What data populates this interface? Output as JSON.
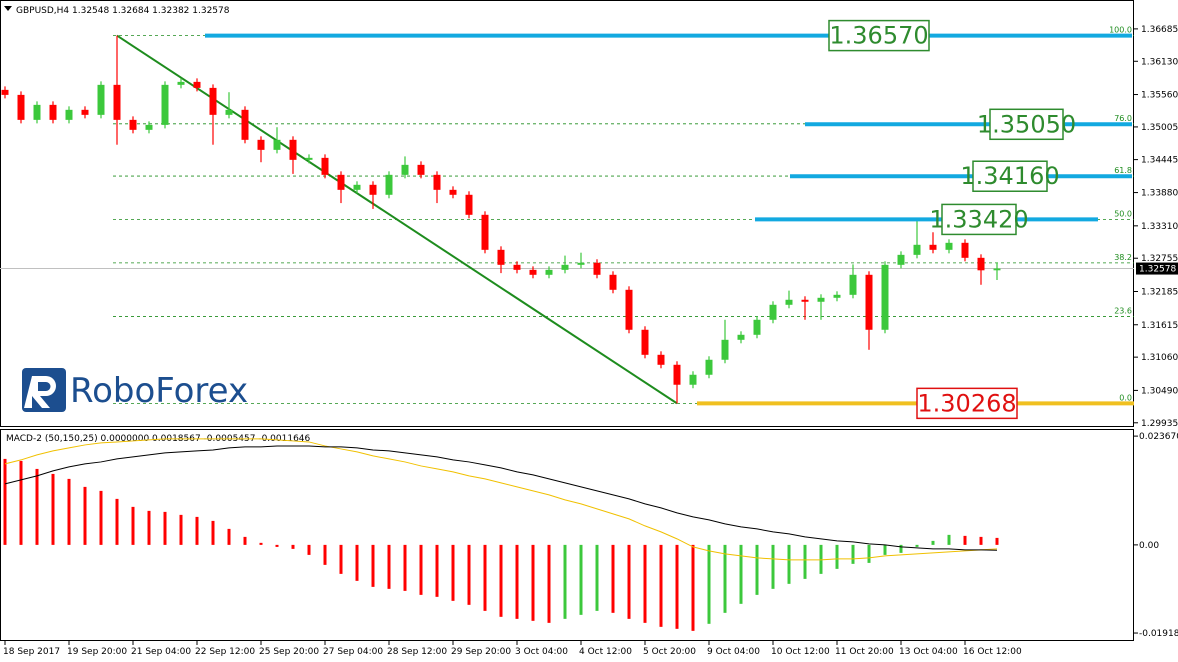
{
  "chart_data": [
    {
      "type": "candlestick",
      "title": "GBPUSD,H4  1.32548 1.32684 1.32382 1.32578",
      "logo": "RoboForex",
      "categories": [
        "18 Sep 2017",
        null,
        null,
        null,
        "19 Sep 20:00",
        null,
        null,
        null,
        "21 Sep 04:00",
        null,
        null,
        null,
        "22 Sep 12:00",
        null,
        null,
        null,
        "25 Sep 20:00",
        null,
        null,
        null,
        "27 Sep 04:00",
        null,
        null,
        null,
        "28 Sep 12:00",
        null,
        null,
        null,
        "29 Sep 20:00",
        null,
        null,
        null,
        "3 Oct 04:00",
        null,
        null,
        null,
        "4 Oct 12:00",
        null,
        null,
        null,
        "5 Oct 20:00",
        null,
        null,
        null,
        "9 Oct 04:00",
        null,
        null,
        null,
        "10 Oct 12:00",
        null,
        null,
        null,
        "11 Oct 20:00",
        null,
        null,
        null,
        "13 Oct 04:00",
        null,
        null,
        null,
        "16 Oct 12:00",
        null,
        null
      ],
      "open": [
        1.3564,
        1.35554,
        1.35126,
        1.35383,
        1.35126,
        1.35298,
        1.35212,
        1.35726,
        1.35126,
        1.34955,
        1.3504,
        1.35726,
        1.35777,
        1.35674,
        1.35212,
        1.35298,
        1.34784,
        1.34612,
        1.34784,
        1.34441,
        1.34475,
        1.34184,
        1.33927,
        1.34013,
        1.33842,
        1.34184,
        1.34355,
        1.34184,
        1.33927,
        1.33842,
        1.33499,
        1.32899,
        1.32642,
        1.32556,
        1.32471,
        1.32556,
        1.32642,
        1.32677,
        1.32471,
        1.32214,
        1.31529,
        1.311,
        1.30929,
        1.30587,
        1.30758,
        1.31015,
        1.31357,
        1.31443,
        1.317,
        1.31957,
        1.32043,
        1.32009,
        1.32077,
        1.32128,
        1.32471,
        1.31529,
        1.32642,
        1.32813,
        1.32985,
        1.32899,
        1.33019,
        1.32762,
        1.32548
      ],
      "high": [
        1.357,
        1.35614,
        1.35443,
        1.35443,
        1.35358,
        1.35358,
        1.35786,
        1.3657,
        1.35186,
        1.351,
        1.35786,
        1.35837,
        1.35837,
        1.35734,
        1.356,
        1.35358,
        1.34844,
        1.35,
        1.34844,
        1.34535,
        1.34535,
        1.34244,
        1.34073,
        1.34073,
        1.34244,
        1.345,
        1.34415,
        1.34244,
        1.33987,
        1.33902,
        1.33559,
        1.32959,
        1.32702,
        1.32616,
        1.32616,
        1.328,
        1.3285,
        1.32737,
        1.32531,
        1.32274,
        1.31589,
        1.3116,
        1.30989,
        1.30818,
        1.31075,
        1.317,
        1.31503,
        1.3176,
        1.32017,
        1.322,
        1.32103,
        1.32137,
        1.32188,
        1.3265,
        1.32531,
        1.32702,
        1.32873,
        1.33447,
        1.332,
        1.33079,
        1.33079,
        1.32822,
        1.32684
      ],
      "low": [
        1.35494,
        1.35066,
        1.35066,
        1.35066,
        1.35066,
        1.35152,
        1.35152,
        1.347,
        1.34895,
        1.34895,
        1.3498,
        1.35666,
        1.35614,
        1.347,
        1.35152,
        1.34724,
        1.344,
        1.34552,
        1.342,
        1.34381,
        1.34124,
        1.337,
        1.33867,
        1.336,
        1.33782,
        1.34124,
        1.34124,
        1.337,
        1.33782,
        1.33439,
        1.32839,
        1.325,
        1.32496,
        1.32411,
        1.32411,
        1.32496,
        1.32582,
        1.32411,
        1.32154,
        1.31469,
        1.3104,
        1.30869,
        1.30268,
        1.30527,
        1.30698,
        1.30955,
        1.31297,
        1.31383,
        1.3164,
        1.31897,
        1.317,
        1.317,
        1.32017,
        1.32068,
        1.31186,
        1.31469,
        1.32582,
        1.32753,
        1.32839,
        1.32839,
        1.32702,
        1.323,
        1.32382
      ],
      "close": [
        1.35554,
        1.35126,
        1.35383,
        1.35126,
        1.35298,
        1.35212,
        1.35726,
        1.35126,
        1.34955,
        1.3504,
        1.35726,
        1.35777,
        1.35674,
        1.35212,
        1.35298,
        1.34784,
        1.34612,
        1.34784,
        1.34441,
        1.34475,
        1.34184,
        1.33927,
        1.34013,
        1.33842,
        1.34184,
        1.34355,
        1.34184,
        1.33927,
        1.33842,
        1.33499,
        1.32899,
        1.32642,
        1.32556,
        1.32471,
        1.32556,
        1.32642,
        1.32677,
        1.32471,
        1.32214,
        1.31529,
        1.311,
        1.30929,
        1.30587,
        1.30758,
        1.31015,
        1.31357,
        1.31443,
        1.317,
        1.31957,
        1.32043,
        1.32009,
        1.32077,
        1.32128,
        1.32471,
        1.31529,
        1.32642,
        1.32813,
        1.32985,
        1.32899,
        1.33019,
        1.32762,
        1.32548,
        1.32578
      ],
      "up_color": "#3cc83c",
      "down_color": "#ff0000",
      "ylim": [
        1.2988,
        1.3718
      ],
      "yticks": [
        {
          "value": 1.36685,
          "label": "1.36685"
        },
        {
          "value": 1.3613,
          "label": "1.36130"
        },
        {
          "value": 1.3556,
          "label": "1.35560"
        },
        {
          "value": 1.35005,
          "label": "1.35005"
        },
        {
          "value": 1.34445,
          "label": "1.34445"
        },
        {
          "value": 1.3388,
          "label": "1.33880"
        },
        {
          "value": 1.3331,
          "label": "1.33310"
        },
        {
          "value": 1.32755,
          "label": "1.32755"
        },
        {
          "value": 1.32185,
          "label": "1.32185"
        },
        {
          "value": 1.31615,
          "label": "1.31615"
        },
        {
          "value": 1.3106,
          "label": "1.31060"
        },
        {
          "value": 1.3049,
          "label": "1.30490"
        },
        {
          "value": 1.29935,
          "label": "1.29935"
        }
      ],
      "current_price": {
        "value": 1.32578,
        "label": "1.32578"
      },
      "fib_levels": [
        {
          "label": "100.0",
          "price": 1.3657
        },
        {
          "label": "76.0",
          "price": 1.35058
        },
        {
          "label": "61.8",
          "price": 1.34163
        },
        {
          "label": "50.0",
          "price": 1.33419
        },
        {
          "label": "38.2",
          "price": 1.32675
        },
        {
          "label": "23.6",
          "price": 1.31755
        },
        {
          "label": "0.0",
          "price": 1.30268
        }
      ],
      "fib_color": "#1e8c1e",
      "trendline": {
        "start_index": 7,
        "start_price": 1.3657,
        "end_index": 42,
        "end_price": 1.30268,
        "color": "#1e8c1e"
      },
      "targets": [
        {
          "value": 1.3657,
          "label": "1.36570",
          "line_color": "#12a9e0",
          "box_color": "#2e8b2e"
        },
        {
          "value": 1.3505,
          "label": "1.35050",
          "line_color": "#12a9e0",
          "box_color": "#2e8b2e"
        },
        {
          "value": 1.3416,
          "label": "1.34160",
          "line_color": "#12a9e0",
          "box_color": "#2e8b2e"
        },
        {
          "value": 1.3342,
          "label": "1.33420",
          "line_color": "#12a9e0",
          "box_color": "#2e8b2e"
        },
        {
          "value": 1.30268,
          "label": "1.30268",
          "line_color": "#f0c020",
          "box_color": "#e01010"
        }
      ]
    },
    {
      "type": "macd",
      "title": "MACD-2 (50,150,25) 0.0000000 0.0018567 -0.0005457 -0.0011646",
      "histogram": [
        0.01871,
        0.01827,
        0.01653,
        0.01544,
        0.01436,
        0.01262,
        0.01175,
        0.01001,
        0.00827,
        0.0074,
        0.00718,
        0.00653,
        0.00609,
        0.00522,
        0.00348,
        0.00174,
        0.00044,
        -0.00044,
        -0.00087,
        -0.00218,
        -0.00435,
        -0.00631,
        -0.00783,
        -0.00914,
        -0.00957,
        -0.01001,
        -0.01088,
        -0.01131,
        -0.01218,
        -0.01305,
        -0.01436,
        -0.01566,
        -0.0161,
        -0.01653,
        -0.01697,
        -0.0161,
        -0.01523,
        -0.01436,
        -0.01479,
        -0.0161,
        -0.01697,
        -0.01784,
        -0.01827,
        -0.01871,
        -0.01718,
        -0.01479,
        -0.01283,
        -0.01088,
        -0.00957,
        -0.00848,
        -0.0074,
        -0.00631,
        -0.00522,
        -0.00413,
        -0.00392,
        -0.00218,
        -0.00174,
        -0.00044,
        0.00087,
        0.00218,
        0.00196,
        0.00174,
        0.00152
      ],
      "up_color": "#3cc83c",
      "down_color": "#ff0000",
      "macd_line": [
        0.01327,
        0.01414,
        0.01501,
        0.0161,
        0.01697,
        0.01762,
        0.01805,
        0.01871,
        0.01914,
        0.01958,
        0.02001,
        0.02023,
        0.02045,
        0.02066,
        0.0211,
        0.02132,
        0.02132,
        0.02153,
        0.02153,
        0.02153,
        0.02132,
        0.02132,
        0.0211,
        0.02066,
        0.02045,
        0.02001,
        0.01958,
        0.01914,
        0.01849,
        0.01805,
        0.0174,
        0.01675,
        0.01588,
        0.01523,
        0.01436,
        0.01349,
        0.01262,
        0.01175,
        0.01088,
        0.01001,
        0.00892,
        0.00805,
        0.00696,
        0.00609,
        0.00544,
        0.00457,
        0.00392,
        0.00348,
        0.00283,
        0.00239,
        0.00174,
        0.00131,
        0.00087,
        0.00065,
        0.00022,
        0,
        -0.00044,
        -0.00065,
        -0.00087,
        -0.00087,
        -0.00109,
        -0.00109,
        -0.00116
      ],
      "macd_color": "#000000",
      "signal_line": [
        0.01762,
        0.01849,
        0.01958,
        0.02045,
        0.0211,
        0.02175,
        0.02219,
        0.0224,
        0.02262,
        0.02284,
        0.02306,
        0.02306,
        0.02306,
        0.02306,
        0.02306,
        0.02306,
        0.02306,
        0.02284,
        0.02262,
        0.0224,
        0.02153,
        0.02088,
        0.02023,
        0.01936,
        0.01871,
        0.01805,
        0.01718,
        0.01653,
        0.01588,
        0.01501,
        0.01436,
        0.01349,
        0.01262,
        0.01175,
        0.01088,
        0.00979,
        0.00892,
        0.00783,
        0.00674,
        0.00566,
        0.00413,
        0.00283,
        0.00131,
        -0.00044,
        -0.00131,
        -0.00196,
        -0.00239,
        -0.00283,
        -0.00305,
        -0.00326,
        -0.00326,
        -0.00326,
        -0.00305,
        -0.00305,
        -0.00283,
        -0.00239,
        -0.00218,
        -0.00196,
        -0.00174,
        -0.00152,
        -0.00131,
        -0.00109,
        -0.00087
      ],
      "signal_color": "#f0c000",
      "ylim": [
        -0.0207,
        0.025
      ],
      "yticks": [
        {
          "value": 0.02367,
          "label": "0.023670"
        },
        {
          "value": 0,
          "label": "0.00"
        },
        {
          "value": -0.019184,
          "label": "-0.01918"
        }
      ]
    }
  ]
}
